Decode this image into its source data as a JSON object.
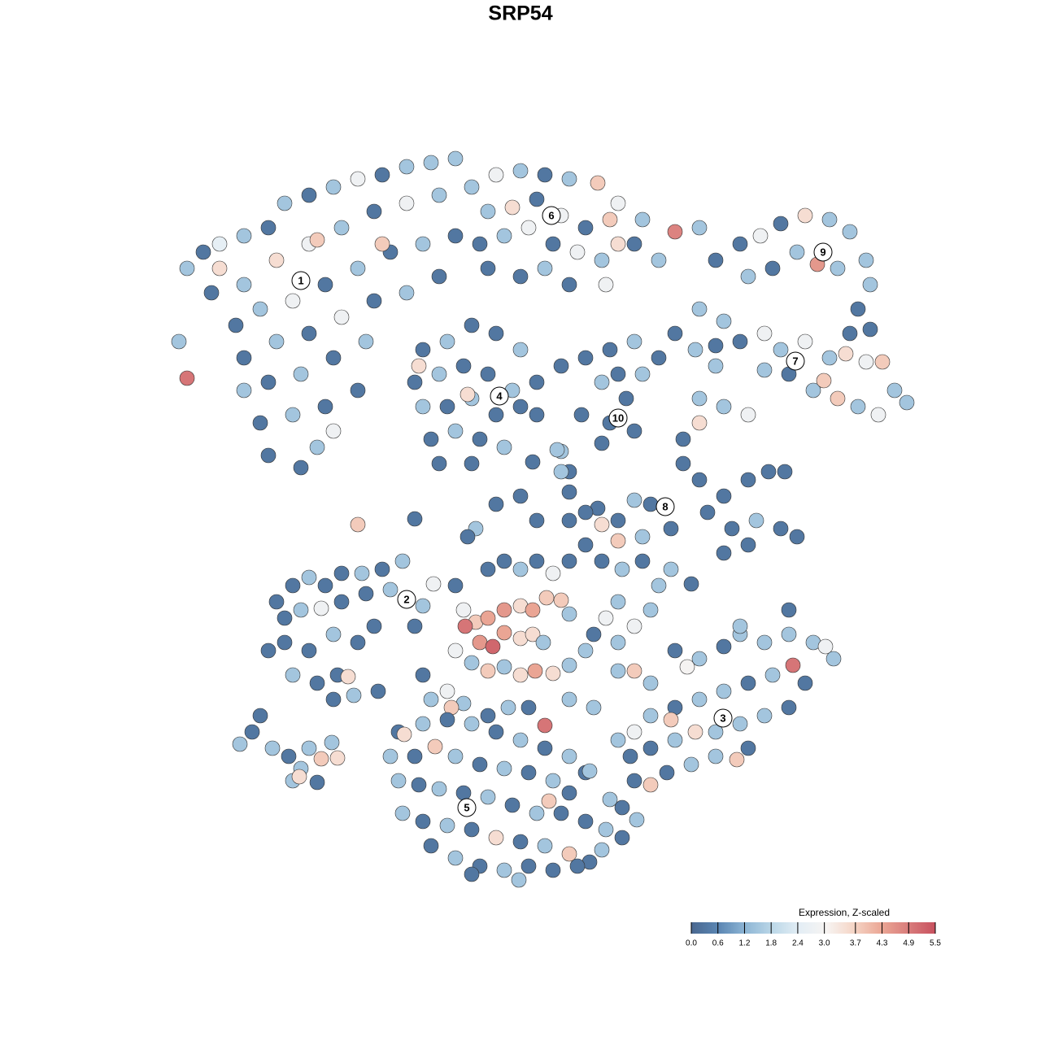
{
  "chart_data": {
    "type": "scatter",
    "title": "SRP54",
    "xlim": [
      0,
      1280
    ],
    "ylim": [
      1280,
      0
    ],
    "x": [
      230,
      250,
      270,
      300,
      330,
      350,
      380,
      410,
      440,
      470,
      500,
      530,
      560,
      260,
      300,
      340,
      380,
      420,
      460,
      500,
      540,
      290,
      320,
      360,
      400,
      440,
      480,
      520,
      560,
      220,
      230,
      300,
      340,
      380,
      420,
      460,
      500,
      540,
      300,
      330,
      370,
      410,
      450,
      320,
      360,
      400,
      440,
      330,
      370,
      390,
      410,
      270,
      390,
      470,
      580,
      610,
      640,
      670,
      700,
      735,
      760,
      790,
      830,
      600,
      630,
      660,
      690,
      720,
      750,
      780,
      810,
      590,
      620,
      650,
      680,
      710,
      740,
      760,
      600,
      640,
      670,
      700,
      745,
      860,
      520,
      550,
      580,
      610,
      640,
      660,
      510,
      540,
      570,
      600,
      630,
      515,
      520,
      550,
      580,
      610,
      640,
      660,
      530,
      560,
      590,
      620,
      540,
      580,
      575,
      690,
      700,
      690,
      720,
      750,
      780,
      810,
      740,
      770,
      790,
      750,
      780,
      740,
      760,
      715,
      830,
      855,
      880,
      880,
      910,
      935,
      960,
      990,
      1020,
      1045,
      1065,
      1070,
      1055,
      1030,
      1005,
      980,
      950,
      920,
      1070,
      1045,
      860,
      890,
      910,
      940,
      960,
      990,
      1020,
      1040,
      1065,
      1085,
      1100,
      1115,
      1080,
      1055,
      1030,
      1000,
      1013,
      970,
      940,
      880,
      860,
      890,
      920,
      860,
      840,
      840,
      860,
      890,
      920,
      945,
      965,
      870,
      900,
      930,
      960,
      980,
      890,
      920,
      800,
      780,
      760,
      740,
      735,
      720,
      700,
      760,
      790,
      825,
      440,
      510,
      585,
      610,
      640,
      660,
      700,
      690,
      685,
      655,
      575,
      340,
      360,
      380,
      400,
      420,
      445,
      470,
      495,
      350,
      370,
      395,
      420,
      450,
      480,
      330,
      350,
      380,
      410,
      440,
      460,
      360,
      390,
      415,
      428,
      410,
      435,
      465,
      510,
      520,
      533,
      560,
      570,
      585,
      600,
      620,
      640,
      655,
      672,
      690,
      700,
      572,
      590,
      606,
      620,
      640,
      655,
      668,
      560,
      580,
      600,
      620,
      640,
      658,
      680,
      700,
      720,
      730,
      745,
      760,
      680,
      660,
      640,
      620,
      600,
      700,
      720,
      740,
      765,
      790,
      810,
      825,
      850,
      800,
      780,
      760,
      670,
      650,
      700,
      730,
      550,
      570,
      600,
      625,
      555,
      520,
      530,
      760,
      780,
      800,
      830,
      860,
      890,
      910,
      940,
      970,
      1000,
      1015,
      1025,
      975,
      950,
      920,
      890,
      860,
      830,
      800,
      990,
      970,
      940,
      910,
      880,
      855,
      830,
      800,
      775,
      920,
      906,
      880,
      850,
      820,
      800,
      780,
      845,
      970,
      910,
      780,
      825,
      760,
      295,
      310,
      320,
      335,
      355,
      370,
      380,
      395,
      408,
      415,
      360,
      368,
      390,
      490,
      520,
      550,
      580,
      610,
      640,
      670,
      700,
      720,
      497,
      480,
      510,
      535,
      560,
      590,
      620,
      650,
      680,
      700,
      490,
      515,
      540,
      570,
      600,
      630,
      660,
      690,
      720,
      745,
      765,
      495,
      520,
      550,
      580,
      610,
      640,
      670,
      700,
      725,
      740,
      530,
      560,
      590,
      620,
      650,
      680,
      710,
      580,
      638,
      675,
      725,
      750,
      765,
      783
    ],
    "y": [
      330,
      310,
      300,
      290,
      280,
      250,
      240,
      230,
      220,
      215,
      205,
      200,
      195,
      360,
      350,
      320,
      300,
      280,
      260,
      250,
      240,
      400,
      380,
      370,
      350,
      330,
      310,
      300,
      290,
      420,
      465,
      440,
      420,
      410,
      390,
      370,
      360,
      340,
      480,
      470,
      460,
      440,
      420,
      520,
      510,
      500,
      480,
      560,
      575,
      550,
      530,
      330,
      295,
      300,
      230,
      215,
      210,
      215,
      220,
      225,
      250,
      270,
      285,
      260,
      255,
      245,
      265,
      280,
      270,
      300,
      320,
      300,
      290,
      280,
      300,
      310,
      320,
      300,
      330,
      340,
      330,
      350,
      350,
      280,
      430,
      420,
      400,
      410,
      430,
      470,
      470,
      460,
      450,
      460,
      480,
      450,
      500,
      500,
      490,
      510,
      500,
      510,
      540,
      530,
      540,
      550,
      570,
      570,
      485,
      555,
      580,
      450,
      440,
      430,
      420,
      440,
      470,
      490,
      460,
      520,
      530,
      545,
      460,
      510,
      410,
      430,
      450,
      320,
      300,
      290,
      275,
      265,
      270,
      285,
      320,
      350,
      380,
      330,
      325,
      310,
      330,
      340,
      405,
      410,
      380,
      395,
      420,
      410,
      430,
      420,
      440,
      435,
      445,
      445,
      480,
      495,
      510,
      500,
      490,
      480,
      468,
      460,
      455,
      425,
      490,
      500,
      510,
      520,
      540,
      570,
      590,
      610,
      590,
      580,
      580,
      630,
      650,
      640,
      650,
      660,
      680,
      670,
      620,
      615,
      640,
      645,
      625,
      630,
      640,
      665,
      660,
      650,
      645,
      638,
      650,
      620,
      610,
      640,
      605,
      580,
      553,
      568,
      660,
      740,
      720,
      710,
      720,
      705,
      705,
      700,
      690,
      760,
      750,
      748,
      740,
      730,
      725,
      800,
      790,
      800,
      780,
      790,
      770,
      830,
      840,
      830,
      832,
      860,
      855,
      850,
      770,
      745,
      718,
      720,
      750,
      765,
      760,
      750,
      745,
      750,
      735,
      738,
      755,
      770,
      790,
      795,
      778,
      785,
      780,
      790,
      800,
      815,
      825,
      820,
      830,
      825,
      828,
      818,
      800,
      780,
      760,
      740,
      705,
      690,
      700,
      690,
      700,
      690,
      670,
      690,
      700,
      690,
      720,
      700,
      718,
      750,
      770,
      790,
      892,
      870,
      860,
      870,
      850,
      865,
      880,
      870,
      870,
      830,
      860,
      825,
      825,
      840,
      800,
      810,
      795,
      780,
      790,
      780,
      790,
      795,
      810,
      818,
      830,
      840,
      850,
      860,
      870,
      880,
      840,
      870,
      880,
      890,
      900,
      900,
      910,
      920,
      930,
      920,
      934,
      930,
      940,
      950,
      965,
      960,
      820,
      750,
      770,
      900,
      885,
      910,
      915,
      900,
      880,
      920,
      930,
      945,
      920,
      933,
      913,
      932,
      960,
      955,
      962,
      900,
      890,
      885,
      890,
      900,
      910,
      920,
      930,
      950,
      903,
      930,
      930,
      918,
      930,
      940,
      945,
      950,
      960,
      975,
      960,
      965,
      970,
      975,
      980,
      990,
      1000,
      1000,
      1010,
      1020,
      1030,
      1000,
      1010,
      1015,
      1020,
      1030,
      1035,
      1040,
      1050,
      1060,
      1045,
      1040,
      1055,
      1065,
      1070,
      1065,
      1070,
      1065,
      1075,
      1082,
      985,
      948,
      983,
      993,
      1008
    ],
    "values": [
      1.5,
      0.3,
      2.5,
      1.5,
      0.3,
      1.5,
      0.3,
      1.5,
      2.8,
      0.3,
      1.5,
      1.5,
      1.5,
      0.3,
      1.5,
      3.5,
      2.8,
      1.5,
      0.3,
      2.8,
      1.5,
      0.3,
      1.5,
      2.8,
      0.3,
      1.5,
      0.3,
      1.5,
      0.3,
      1.5,
      5,
      0.3,
      1.5,
      0.3,
      2.8,
      0.3,
      1.5,
      0.3,
      1.5,
      0.3,
      1.5,
      0.3,
      1.5,
      0.3,
      1.5,
      0.3,
      0.3,
      0.3,
      0.3,
      1.5,
      2.8,
      3.5,
      3.8,
      3.8,
      1.5,
      2.8,
      1.5,
      0.3,
      1.5,
      3.8,
      2.8,
      1.5,
      4.8,
      1.5,
      3.5,
      0.3,
      2.8,
      0.3,
      3.8,
      0.3,
      1.5,
      0.3,
      1.5,
      2.8,
      0.3,
      2.8,
      1.5,
      3.5,
      0.3,
      0.3,
      1.5,
      0.3,
      2.8,
      1.5,
      0.3,
      1.5,
      0.3,
      0.3,
      1.5,
      0.3,
      0.3,
      1.5,
      0.3,
      0.3,
      1.5,
      3.5,
      1.5,
      0.3,
      1.5,
      0.3,
      0.3,
      0.3,
      0.3,
      1.5,
      0.3,
      1.5,
      0.3,
      0.3,
      3.5,
      1.5,
      0.3,
      0.3,
      0.3,
      0.3,
      1.5,
      0.3,
      1.5,
      0.3,
      1.5,
      0.3,
      0.3,
      0.3,
      0.3,
      0.3,
      0.3,
      1.5,
      1.5,
      0.3,
      0.3,
      2.8,
      0.3,
      3.5,
      1.5,
      1.5,
      1.5,
      1.5,
      0.3,
      1.5,
      4.5,
      1.5,
      0.3,
      1.5,
      0.3,
      0.3,
      1.5,
      1.5,
      0.3,
      2.8,
      1.5,
      2.8,
      1.5,
      3.5,
      2.8,
      3.8,
      1.5,
      1.5,
      2.8,
      1.5,
      3.8,
      1.5,
      3.8,
      0.3,
      1.5,
      0.3,
      1.5,
      1.5,
      2.8,
      3.5,
      0.3,
      0.3,
      0.3,
      0.3,
      0.3,
      0.3,
      0.3,
      0.3,
      0.3,
      1.5,
      0.3,
      0.3,
      0.3,
      0.3,
      0.3,
      1.5,
      0.3,
      3.5,
      0.3,
      0.3,
      0.3,
      3.8,
      1.5,
      0.3,
      3.8,
      0.3,
      1.5,
      0.3,
      0.3,
      0.3,
      0.3,
      1.5,
      1.5,
      0.3,
      0.3,
      0.3,
      0.3,
      1.5,
      0.3,
      0.3,
      1.5,
      0.3,
      1.5,
      0.3,
      1.5,
      2.8,
      0.3,
      0.3,
      1.5,
      0.3,
      0.3,
      0.3,
      1.5,
      0.3,
      0.3,
      1.5,
      0.3,
      0.3,
      3.5,
      0.3,
      1.5,
      0.3,
      0.3,
      1.5,
      2.8,
      0.3,
      2.8,
      3.8,
      4.3,
      4.5,
      3.5,
      4.3,
      3.8,
      3.8,
      1.5,
      5,
      4.5,
      5.2,
      4.3,
      3.5,
      3.5,
      1.5,
      2.8,
      1.5,
      3.8,
      1.5,
      3.5,
      4.3,
      3.5,
      1.5,
      1.5,
      0.3,
      2.8,
      1.5,
      2.8,
      0.3,
      1.5,
      0.3,
      0.3,
      0.3,
      0.3,
      0.3,
      1.5,
      0.3,
      1.5,
      1.5,
      0.3,
      1.5,
      2.8,
      1.5,
      5,
      0.3,
      1.5,
      1.5,
      2.8,
      1.5,
      0.3,
      1.5,
      3.8,
      0.3,
      1.5,
      1.5,
      3.8,
      1.5,
      0.3,
      1.5,
      0.3,
      1.5,
      1.5,
      1.5,
      1.5,
      2.8,
      1.5,
      5,
      1.5,
      0.3,
      1.5,
      1.5,
      0.3,
      1.5,
      0.3,
      0.3,
      1.5,
      1.5,
      1.5,
      3.5,
      1.5,
      0.3,
      0.3,
      0.3,
      3.8,
      1.5,
      1.5,
      0.3,
      3.8,
      0.3,
      3,
      0.3,
      1.5,
      2.8,
      3.8,
      1.5,
      1.5,
      0.3,
      0.3,
      1.5,
      0.3,
      1.5,
      1.5,
      3.8,
      1.5,
      3.5,
      1.5,
      3.5,
      0.3,
      0.3,
      1.5,
      0.3,
      1.5,
      0.3,
      1.5,
      0.3,
      1.5,
      0.3,
      3.5,
      1.5,
      0.3,
      3.8,
      1.5,
      0.3,
      1.5,
      0.3,
      1.5,
      0.3,
      1.5,
      0.3,
      1.5,
      0.3,
      1.5,
      0.3,
      1.5,
      0.3,
      0.3,
      1.5,
      0.3,
      1.5,
      0.3,
      1.5,
      0.3,
      3.5,
      0.3,
      1.5,
      3.8,
      0.3,
      1.5,
      0.3,
      1.5,
      0.3,
      1.5,
      0.3,
      0.3,
      0.3,
      0.3,
      1.5,
      3.8,
      1.5,
      1.5,
      0.3,
      1.5
    ],
    "cluster_labels": [
      "1",
      "2",
      "3",
      "4",
      "5",
      "6",
      "7",
      "8",
      "9",
      "10"
    ],
    "cluster_x": [
      370,
      500,
      889,
      614,
      574,
      678,
      978,
      818,
      1012,
      760
    ],
    "cluster_y": [
      345,
      737,
      883,
      487,
      993,
      265,
      444,
      623,
      310,
      514
    ],
    "colorbar_title": "Expression, Z-scaled",
    "zlim": [
      0,
      5.5
    ],
    "zticks": [
      {
        "value": 0,
        "label": "0.0"
      },
      0.6,
      1.2,
      1.8,
      2.4,
      {
        "value": 3,
        "label": "3.0"
      },
      3.7,
      4.3,
      4.9,
      5.5
    ],
    "colors": [
      "#4a6890",
      "#5b86b3",
      "#8eb6d5",
      "#bcd8e8",
      "#e4eef5",
      "#f7f4f2",
      "#f5d5c6",
      "#eba795",
      "#d97d7c",
      "#c8515f"
    ]
  }
}
